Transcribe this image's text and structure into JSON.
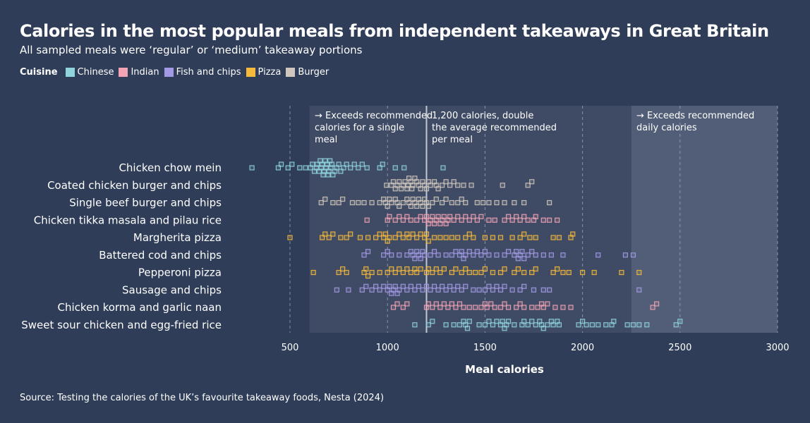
{
  "title": "Calories in the most popular meals from independent takeaways in Great Britain",
  "subtitle": "All sampled meals were ‘regular’ or ‘medium’ takeaway portions",
  "source": "Source: Testing the calories of the UK’s favourite takeaway foods, Nesta (2024)",
  "legend": {
    "title": "Cuisine",
    "items": [
      {
        "label": "Chinese",
        "color": "#8fd3dc"
      },
      {
        "label": "Indian",
        "color": "#f2a3b5"
      },
      {
        "label": "Fish and chips",
        "color": "#a39ae6"
      },
      {
        "label": "Pizza",
        "color": "#f5b93b"
      },
      {
        "label": "Burger",
        "color": "#cfc7bd"
      }
    ]
  },
  "chart_data": {
    "type": "scatter",
    "xlabel": "Meal calories",
    "xlim": [
      0,
      3000
    ],
    "xticks": [
      500,
      1000,
      1500,
      2000,
      2500,
      3000
    ],
    "grid": true,
    "legend_position": "top-left",
    "shaded_regions": [
      {
        "from": 600,
        "to": 2250,
        "label": "→ Exceeds recommended calories for a single meal"
      },
      {
        "from": 2250,
        "to": 3000,
        "label": "→ Exceeds recommended daily calories"
      }
    ],
    "reference_line": {
      "x": 1200,
      "label": "1,200 calories, double the average recommended per meal"
    },
    "series": [
      {
        "name": "Chicken chow mein",
        "cuisine": "Chinese",
        "values": [
          305,
          440,
          455,
          490,
          510,
          550,
          580,
          605,
          615,
          625,
          635,
          640,
          650,
          655,
          660,
          665,
          670,
          675,
          680,
          685,
          690,
          695,
          700,
          705,
          710,
          715,
          720,
          730,
          740,
          750,
          760,
          775,
          790,
          810,
          830,
          850,
          870,
          895,
          960,
          975,
          1040,
          1085,
          1285
        ]
      },
      {
        "name": "Coated chicken burger and chips",
        "cuisine": "Burger",
        "values": [
          995,
          1020,
          1030,
          1040,
          1050,
          1060,
          1070,
          1080,
          1090,
          1100,
          1105,
          1110,
          1120,
          1125,
          1130,
          1140,
          1150,
          1160,
          1170,
          1180,
          1190,
          1200,
          1210,
          1220,
          1240,
          1250,
          1260,
          1280,
          1300,
          1320,
          1340,
          1360,
          1390,
          1430,
          1590,
          1720,
          1740
        ]
      },
      {
        "name": "Single beef burger and chips",
        "cuisine": "Burger",
        "values": [
          660,
          680,
          720,
          750,
          770,
          820,
          850,
          880,
          920,
          960,
          980,
          990,
          1000,
          1010,
          1020,
          1040,
          1050,
          1060,
          1080,
          1100,
          1110,
          1120,
          1130,
          1140,
          1150,
          1160,
          1170,
          1180,
          1190,
          1200,
          1210,
          1230,
          1250,
          1280,
          1300,
          1330,
          1360,
          1380,
          1400,
          1460,
          1490,
          1520,
          1560,
          1600,
          1650,
          1700,
          1830
        ]
      },
      {
        "name": "Chicken tikka masala and pilau rice",
        "cuisine": "Indian",
        "values": [
          895,
          1000,
          1010,
          1040,
          1060,
          1080,
          1100,
          1120,
          1150,
          1170,
          1190,
          1200,
          1210,
          1220,
          1230,
          1240,
          1250,
          1260,
          1270,
          1280,
          1290,
          1300,
          1310,
          1320,
          1340,
          1360,
          1380,
          1400,
          1420,
          1440,
          1460,
          1480,
          1520,
          1550,
          1600,
          1620,
          1640,
          1660,
          1680,
          1700,
          1720,
          1750,
          1760,
          1800,
          1830,
          1870
        ]
      },
      {
        "name": "Margherita pizza",
        "cuisine": "Pizza",
        "values": [
          500,
          665,
          680,
          700,
          720,
          760,
          790,
          810,
          860,
          900,
          940,
          960,
          980,
          990,
          1000,
          1010,
          1040,
          1060,
          1080,
          1100,
          1110,
          1130,
          1150,
          1170,
          1190,
          1200,
          1210,
          1240,
          1270,
          1300,
          1330,
          1360,
          1400,
          1420,
          1440,
          1500,
          1540,
          1580,
          1640,
          1680,
          1700,
          1730,
          1760,
          1850,
          1880,
          1940,
          1950
        ]
      },
      {
        "name": "Battered cod and chips",
        "cuisine": "Fish and chips",
        "values": [
          880,
          900,
          980,
          1000,
          1020,
          1060,
          1100,
          1120,
          1130,
          1140,
          1150,
          1160,
          1170,
          1180,
          1190,
          1220,
          1240,
          1260,
          1300,
          1330,
          1350,
          1370,
          1380,
          1390,
          1400,
          1420,
          1440,
          1460,
          1480,
          1500,
          1520,
          1560,
          1600,
          1620,
          1650,
          1660,
          1670,
          1680,
          1690,
          1700,
          1720,
          1740,
          1760,
          1800,
          1840,
          1900,
          2080,
          2220,
          2260
        ]
      },
      {
        "name": "Pepperoni pizza",
        "cuisine": "Pizza",
        "values": [
          620,
          750,
          770,
          790,
          880,
          890,
          900,
          920,
          960,
          1000,
          1020,
          1040,
          1060,
          1080,
          1100,
          1120,
          1140,
          1150,
          1170,
          1200,
          1210,
          1230,
          1250,
          1270,
          1290,
          1330,
          1350,
          1380,
          1400,
          1420,
          1450,
          1480,
          1500,
          1540,
          1580,
          1600,
          1650,
          1670,
          1700,
          1740,
          1760,
          1850,
          1870,
          1900,
          1930,
          2000,
          2060,
          2200,
          2290
        ]
      },
      {
        "name": "Sausage and chips",
        "cuisine": "Fish and chips",
        "values": [
          740,
          800,
          870,
          890,
          920,
          940,
          960,
          980,
          1000,
          1010,
          1020,
          1030,
          1040,
          1050,
          1060,
          1080,
          1100,
          1120,
          1140,
          1160,
          1180,
          1200,
          1220,
          1240,
          1260,
          1280,
          1300,
          1320,
          1340,
          1360,
          1380,
          1400,
          1440,
          1470,
          1500,
          1520,
          1540,
          1560,
          1580,
          1600,
          1640,
          1680,
          1700,
          1750,
          1800,
          1830,
          2290
        ]
      },
      {
        "name": "Chicken korma and garlic naan",
        "cuisine": "Indian",
        "values": [
          1030,
          1050,
          1080,
          1100,
          1200,
          1210,
          1230,
          1250,
          1270,
          1290,
          1310,
          1330,
          1350,
          1370,
          1390,
          1420,
          1450,
          1480,
          1500,
          1510,
          1530,
          1550,
          1580,
          1600,
          1620,
          1660,
          1680,
          1700,
          1740,
          1770,
          1790,
          1800,
          1820,
          1860,
          1900,
          1940,
          2360,
          2380
        ]
      },
      {
        "name": "Sweet sour chicken and egg-fried rice",
        "cuisine": "Chinese",
        "values": [
          1140,
          1210,
          1230,
          1300,
          1340,
          1370,
          1390,
          1400,
          1410,
          1420,
          1470,
          1500,
          1520,
          1540,
          1560,
          1580,
          1590,
          1600,
          1610,
          1620,
          1650,
          1690,
          1700,
          1720,
          1740,
          1760,
          1780,
          1790,
          1800,
          1820,
          1840,
          1850,
          1870,
          1880,
          1980,
          2000,
          2020,
          2050,
          2080,
          2120,
          2150,
          2160,
          2230,
          2260,
          2290,
          2330,
          2480,
          2500
        ]
      }
    ]
  }
}
